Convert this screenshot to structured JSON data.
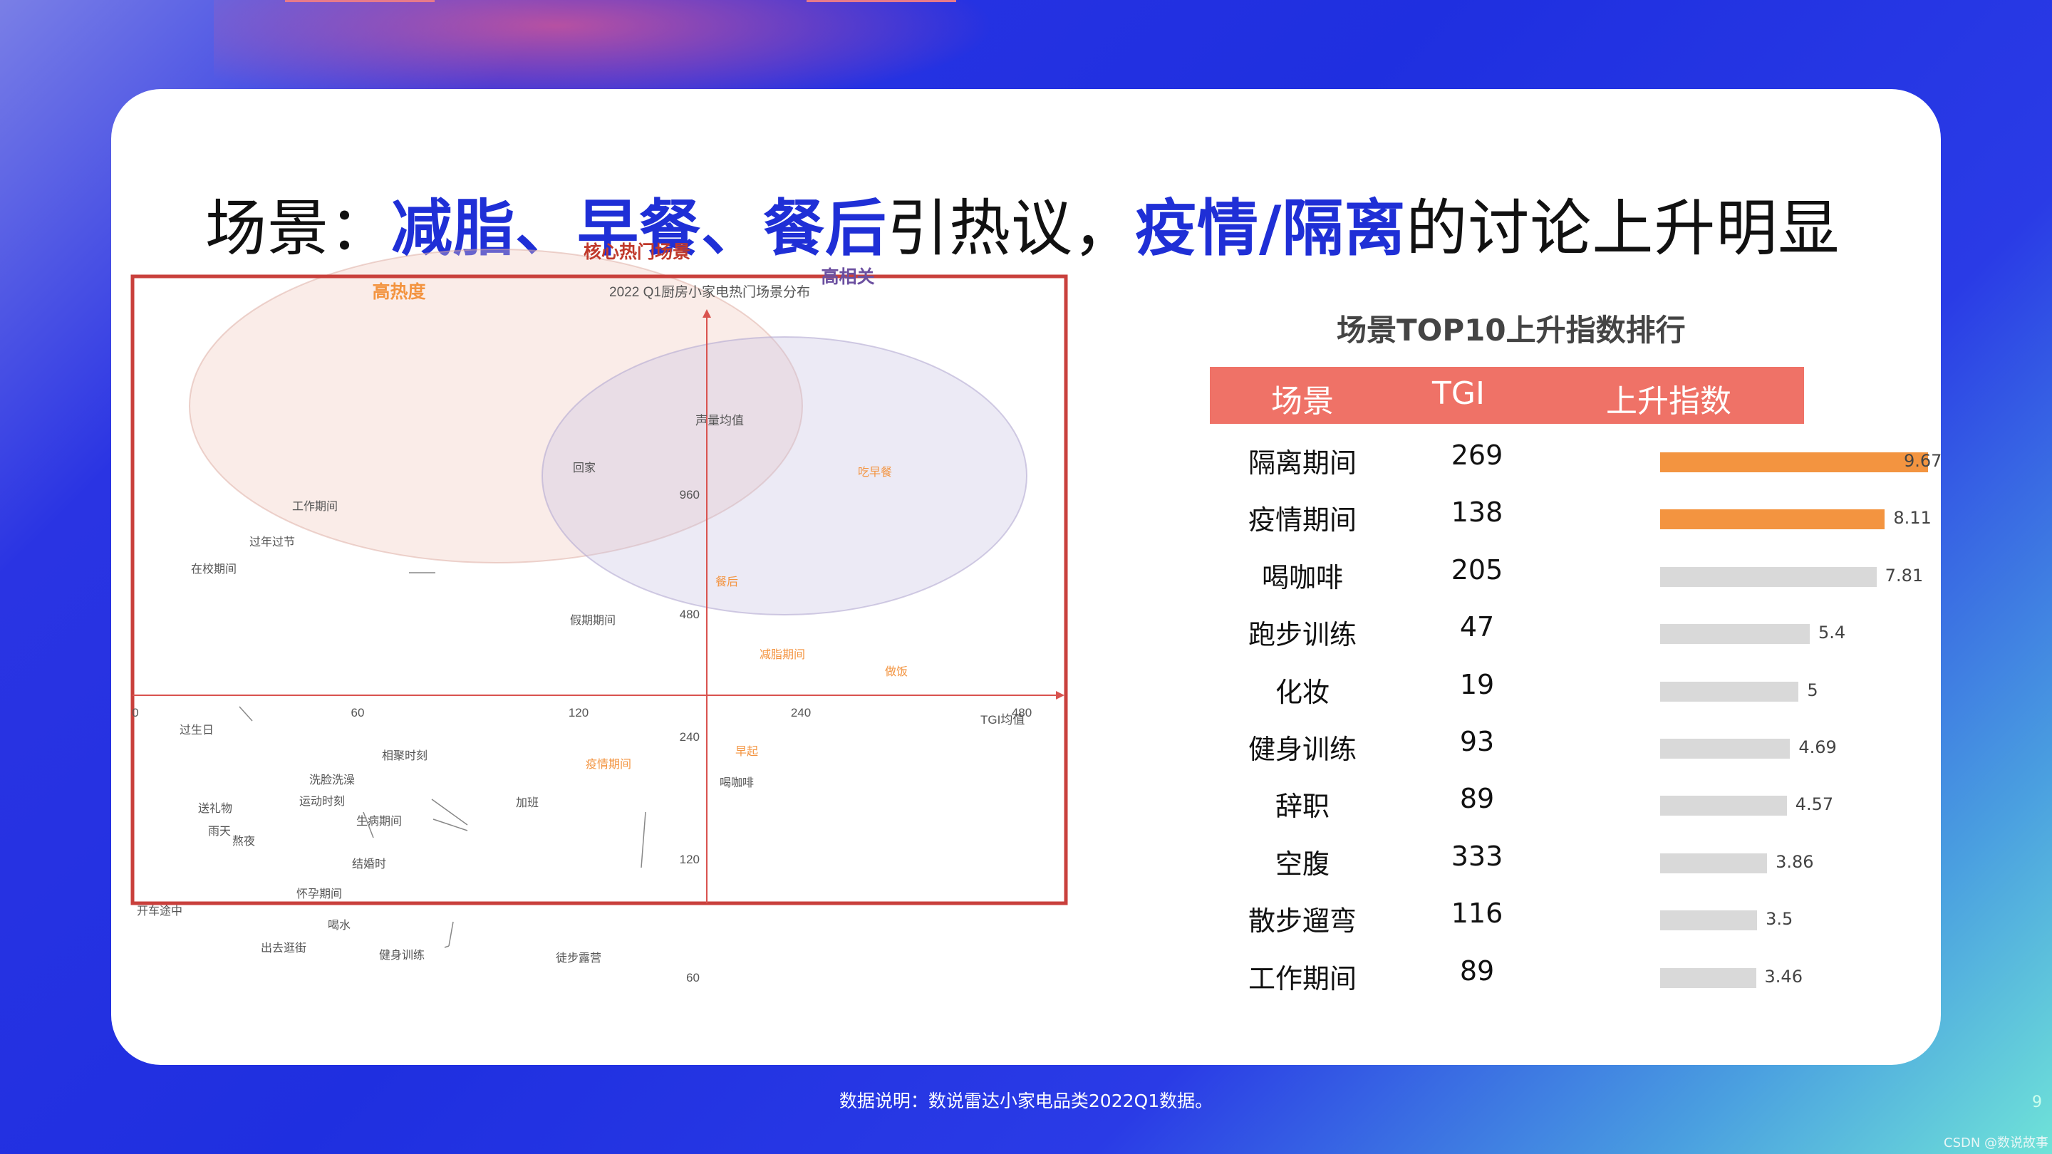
{
  "title": {
    "prefix": "场景：",
    "hl1": "减脂、早餐、餐后",
    "mid": "引热议，",
    "hl2": "疫情/隔离",
    "suffix": "的讨论上升明显"
  },
  "scatter": {
    "title": "2022 Q1厨房小家电热门场景分布",
    "x_axis_label": "TGI均值",
    "x_ticks": [
      "0",
      "60",
      "120",
      "240",
      "480"
    ],
    "y_ticks_top": [
      "960",
      "480"
    ],
    "y_ticks_bottom": [
      "240",
      "120",
      "60"
    ],
    "y_axis_label": "声量均值",
    "bubbles": [
      {
        "name": "高热度",
        "color": "#f39440"
      },
      {
        "name": "核心热门场景",
        "color": "#c0392b"
      },
      {
        "name": "高相关",
        "color": "#6b4fa0"
      }
    ],
    "labels_grey": [
      "工作期间",
      "过年过节",
      "在校期间",
      "回家",
      "假期期间",
      "过生日",
      "相聚时刻",
      "洗脸洗澡",
      "运动时刻",
      "送礼物",
      "雨天",
      "熬夜",
      "生病期间",
      "加班",
      "结婚时",
      "怀孕期间",
      "开车途中",
      "喝水",
      "出去逛街",
      "健身训练",
      "徒步露营",
      "喝咖啡"
    ],
    "labels_orange": [
      "吃早餐",
      "餐后",
      "减脂期间",
      "做饭",
      "早起",
      "疫情期间"
    ]
  },
  "ranking": {
    "title": "场景TOP10上升指数排行",
    "headers": {
      "scene": "场景",
      "tgi": "TGI",
      "index": "上升指数"
    },
    "rows": [
      {
        "scene": "隔离期间",
        "tgi": "269",
        "index": "9.67",
        "value": 9.67,
        "highlight": true
      },
      {
        "scene": "疫情期间",
        "tgi": "138",
        "index": "8.11",
        "value": 8.11,
        "highlight": true
      },
      {
        "scene": "喝咖啡",
        "tgi": "205",
        "index": "7.81",
        "value": 7.81,
        "highlight": false
      },
      {
        "scene": "跑步训练",
        "tgi": "47",
        "index": "5.4",
        "value": 5.4,
        "highlight": false
      },
      {
        "scene": "化妆",
        "tgi": "19",
        "index": "5",
        "value": 5,
        "highlight": false
      },
      {
        "scene": "健身训练",
        "tgi": "93",
        "index": "4.69",
        "value": 4.69,
        "highlight": false
      },
      {
        "scene": "辞职",
        "tgi": "89",
        "index": "4.57",
        "value": 4.57,
        "highlight": false
      },
      {
        "scene": "空腹",
        "tgi": "333",
        "index": "3.86",
        "value": 3.86,
        "highlight": false
      },
      {
        "scene": "散步遛弯",
        "tgi": "116",
        "index": "3.5",
        "value": 3.5,
        "highlight": false
      },
      {
        "scene": "工作期间",
        "tgi": "89",
        "index": "3.46",
        "value": 3.46,
        "highlight": false
      }
    ]
  },
  "footer": {
    "note": "数据说明：数说雷达小家电品类2022Q1数据。",
    "page": "9",
    "watermark": "CSDN @数说故事"
  },
  "colors": {
    "accent": "#1f2fd6",
    "header": "#ef7267",
    "bar_hot": "#f39440",
    "bar": "#d9d9d9",
    "frame": "#c9403c"
  }
}
